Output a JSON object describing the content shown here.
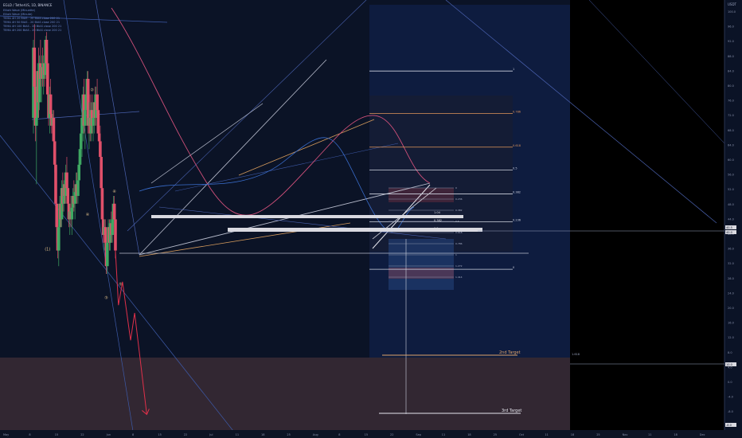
{
  "legend": {
    "title": "EGLD / TetherUS, 1D, BINANCE",
    "lines": [
      "Elliott Wave (Minuette)",
      "Elliott Wave (Minute)",
      "TEMA 4H 20 BIAS - 20 BIAS close 200 21",
      "TEMA 4H 50 BIAS - 20 BIAS close 200 21",
      "TEMA 4H 100 BIAS - 20 BIAS close 200 21",
      "TEMA 4H 200 BIAS - 20 BIAS close 200 21"
    ]
  },
  "currency": "USDT",
  "wave_labels": [
    {
      "text": "(1)",
      "t": 14,
      "p": 38.0
    },
    {
      "text": "②",
      "t": 58,
      "p": 78.8
    },
    {
      "text": "④",
      "t": 53.5,
      "p": 46.9
    },
    {
      "text": "③",
      "t": 72,
      "p": 25.6
    },
    {
      "text": "④",
      "t": 80,
      "p": 52.8
    },
    {
      "text": "⑤",
      "t": 86,
      "p": 29.0
    }
  ],
  "targets": [
    {
      "text": "2nd Target",
      "p": 9.6
    },
    {
      "text": "3rd Target",
      "p": -4.4
    }
  ],
  "fib_levels": [
    {
      "label": "0",
      "p": 33.2
    },
    {
      "label": "0.236",
      "p": 45.4
    },
    {
      "label": "0.382",
      "p": 52.5
    },
    {
      "label": "0.5",
      "p": 58.6
    },
    {
      "label": "0.618",
      "p": 64.5
    },
    {
      "label": "0.786",
      "p": 73.1
    },
    {
      "label": "1",
      "p": 84.0
    }
  ],
  "fib_small": [
    "0",
    "0.236",
    "0.382",
    "0.5",
    "0.618",
    "0.786",
    "1",
    "1.272",
    "1.414"
  ],
  "fib_small_values": [
    "1.04",
    "0.382",
    "0.5"
  ],
  "right_fib": "1.618",
  "price_axis": {
    "labels": [
      "100.0",
      "96.0",
      "92.0",
      "88.0",
      "84.0",
      "80.0",
      "76.0",
      "72.0",
      "68.0",
      "64.0",
      "60.0",
      "56.0",
      "52.0",
      "48.0",
      "44.0",
      "40.0",
      "36.0",
      "32.0",
      "28.0",
      "24.0",
      "20.0",
      "16.0",
      "12.0",
      "8.0",
      "4.0",
      "0.0",
      "-4.0",
      "-8.0"
    ],
    "current_price": "40.5",
    "current_change": "40.0",
    "mid_tag": "10.0",
    "low_tag": "-8.0"
  },
  "time_axis": {
    "labels": [
      "May",
      "8",
      "15",
      "22",
      "Jun",
      "8",
      "15",
      "22",
      "Jul",
      "11",
      "18",
      "25",
      "Aug",
      "8",
      "15",
      "22",
      "Sep",
      "11",
      "18",
      "25",
      "Oct",
      "11",
      "18",
      "25",
      "Nov",
      "11",
      "18",
      "Dec"
    ]
  },
  "chart_data": {
    "type": "candlestick",
    "title": "EGLD / TetherUS, 1D, BINANCE",
    "xlabel": "",
    "ylabel": "USDT",
    "x_unit": "days from 1 May (chart start)",
    "xlim": [
      0,
      180
    ],
    "ylim": [
      -8,
      102
    ],
    "candles": [
      {
        "t": 0,
        "o": 72,
        "h": 92,
        "l": 68,
        "c": 90
      },
      {
        "t": 1,
        "o": 90,
        "h": 96,
        "l": 78,
        "c": 80
      },
      {
        "t": 2,
        "o": 80,
        "h": 84,
        "l": 66,
        "c": 70
      },
      {
        "t": 3,
        "o": 70,
        "h": 78,
        "l": 55,
        "c": 72
      },
      {
        "t": 4,
        "o": 72,
        "h": 86,
        "l": 70,
        "c": 84
      },
      {
        "t": 5,
        "o": 84,
        "h": 90,
        "l": 72,
        "c": 76
      },
      {
        "t": 6,
        "o": 76,
        "h": 88,
        "l": 74,
        "c": 86
      },
      {
        "t": 7,
        "o": 86,
        "h": 92,
        "l": 80,
        "c": 82
      },
      {
        "t": 8,
        "o": 82,
        "h": 88,
        "l": 76,
        "c": 85
      },
      {
        "t": 9,
        "o": 85,
        "h": 90,
        "l": 80,
        "c": 82
      },
      {
        "t": 10,
        "o": 82,
        "h": 88,
        "l": 78,
        "c": 86
      },
      {
        "t": 11,
        "o": 86,
        "h": 90,
        "l": 80,
        "c": 83
      },
      {
        "t": 12,
        "o": 83,
        "h": 93,
        "l": 82,
        "c": 92
      },
      {
        "t": 13,
        "o": 92,
        "h": 94,
        "l": 84,
        "c": 86
      },
      {
        "t": 14,
        "o": 86,
        "h": 90,
        "l": 76,
        "c": 78
      },
      {
        "t": 15,
        "o": 78,
        "h": 84,
        "l": 70,
        "c": 72
      },
      {
        "t": 16,
        "o": 72,
        "h": 80,
        "l": 68,
        "c": 78
      },
      {
        "t": 17,
        "o": 78,
        "h": 82,
        "l": 70,
        "c": 73
      },
      {
        "t": 18,
        "o": 73,
        "h": 78,
        "l": 68,
        "c": 70
      },
      {
        "t": 19,
        "o": 70,
        "h": 74,
        "l": 66,
        "c": 72
      },
      {
        "t": 20,
        "o": 72,
        "h": 74,
        "l": 62,
        "c": 66
      },
      {
        "t": 21,
        "o": 66,
        "h": 70,
        "l": 58,
        "c": 60
      },
      {
        "t": 22,
        "o": 60,
        "h": 62,
        "l": 48,
        "c": 50
      },
      {
        "t": 23,
        "o": 50,
        "h": 56,
        "l": 40,
        "c": 44
      },
      {
        "t": 24,
        "o": 44,
        "h": 48,
        "l": 36,
        "c": 38
      },
      {
        "t": 25,
        "o": 38,
        "h": 46,
        "l": 34,
        "c": 44
      },
      {
        "t": 26,
        "o": 44,
        "h": 52,
        "l": 42,
        "c": 50
      },
      {
        "t": 27,
        "o": 50,
        "h": 54,
        "l": 44,
        "c": 46
      },
      {
        "t": 28,
        "o": 46,
        "h": 56,
        "l": 44,
        "c": 54
      },
      {
        "t": 29,
        "o": 54,
        "h": 58,
        "l": 48,
        "c": 50
      },
      {
        "t": 30,
        "o": 50,
        "h": 56,
        "l": 48,
        "c": 55
      },
      {
        "t": 31,
        "o": 55,
        "h": 58,
        "l": 50,
        "c": 52
      },
      {
        "t": 32,
        "o": 52,
        "h": 60,
        "l": 50,
        "c": 58
      },
      {
        "t": 33,
        "o": 58,
        "h": 62,
        "l": 52,
        "c": 54
      },
      {
        "t": 34,
        "o": 54,
        "h": 58,
        "l": 48,
        "c": 50
      },
      {
        "t": 35,
        "o": 50,
        "h": 54,
        "l": 44,
        "c": 46
      },
      {
        "t": 36,
        "o": 46,
        "h": 50,
        "l": 42,
        "c": 48
      },
      {
        "t": 37,
        "o": 48,
        "h": 52,
        "l": 44,
        "c": 46
      },
      {
        "t": 38,
        "o": 46,
        "h": 50,
        "l": 42,
        "c": 49
      },
      {
        "t": 39,
        "o": 49,
        "h": 54,
        "l": 46,
        "c": 52
      },
      {
        "t": 40,
        "o": 52,
        "h": 56,
        "l": 48,
        "c": 50
      },
      {
        "t": 41,
        "o": 50,
        "h": 54,
        "l": 46,
        "c": 53
      },
      {
        "t": 42,
        "o": 53,
        "h": 58,
        "l": 50,
        "c": 55
      },
      {
        "t": 43,
        "o": 55,
        "h": 58,
        "l": 50,
        "c": 52
      },
      {
        "t": 44,
        "o": 52,
        "h": 58,
        "l": 50,
        "c": 56
      },
      {
        "t": 45,
        "o": 56,
        "h": 62,
        "l": 54,
        "c": 60
      },
      {
        "t": 46,
        "o": 60,
        "h": 66,
        "l": 56,
        "c": 64
      },
      {
        "t": 47,
        "o": 64,
        "h": 70,
        "l": 60,
        "c": 68
      },
      {
        "t": 48,
        "o": 68,
        "h": 74,
        "l": 62,
        "c": 72
      },
      {
        "t": 49,
        "o": 72,
        "h": 80,
        "l": 66,
        "c": 78
      },
      {
        "t": 50,
        "o": 78,
        "h": 82,
        "l": 68,
        "c": 70
      },
      {
        "t": 51,
        "o": 70,
        "h": 76,
        "l": 64,
        "c": 74
      },
      {
        "t": 52,
        "o": 74,
        "h": 80,
        "l": 70,
        "c": 78
      },
      {
        "t": 53,
        "o": 78,
        "h": 84,
        "l": 72,
        "c": 82
      },
      {
        "t": 54,
        "o": 82,
        "h": 84,
        "l": 68,
        "c": 70
      },
      {
        "t": 55,
        "o": 70,
        "h": 76,
        "l": 64,
        "c": 72
      },
      {
        "t": 56,
        "o": 72,
        "h": 78,
        "l": 66,
        "c": 68
      },
      {
        "t": 57,
        "o": 68,
        "h": 76,
        "l": 66,
        "c": 74
      },
      {
        "t": 58,
        "o": 74,
        "h": 78,
        "l": 68,
        "c": 70
      },
      {
        "t": 59,
        "o": 70,
        "h": 76,
        "l": 66,
        "c": 72
      },
      {
        "t": 60,
        "o": 72,
        "h": 78,
        "l": 68,
        "c": 76
      },
      {
        "t": 61,
        "o": 76,
        "h": 80,
        "l": 70,
        "c": 72
      },
      {
        "t": 62,
        "o": 72,
        "h": 80,
        "l": 70,
        "c": 78
      },
      {
        "t": 63,
        "o": 78,
        "h": 82,
        "l": 72,
        "c": 74
      },
      {
        "t": 64,
        "o": 74,
        "h": 78,
        "l": 66,
        "c": 68
      },
      {
        "t": 65,
        "o": 68,
        "h": 72,
        "l": 62,
        "c": 66
      },
      {
        "t": 66,
        "o": 66,
        "h": 70,
        "l": 60,
        "c": 62
      },
      {
        "t": 67,
        "o": 62,
        "h": 64,
        "l": 52,
        "c": 54
      },
      {
        "t": 68,
        "o": 54,
        "h": 58,
        "l": 44,
        "c": 46
      },
      {
        "t": 69,
        "o": 46,
        "h": 48,
        "l": 40,
        "c": 42
      },
      {
        "t": 70,
        "o": 42,
        "h": 46,
        "l": 38,
        "c": 44
      },
      {
        "t": 71,
        "o": 44,
        "h": 46,
        "l": 38,
        "c": 40
      },
      {
        "t": 72,
        "o": 40,
        "h": 42,
        "l": 32,
        "c": 34
      },
      {
        "t": 73,
        "o": 34,
        "h": 42,
        "l": 32,
        "c": 40
      },
      {
        "t": 74,
        "o": 40,
        "h": 46,
        "l": 38,
        "c": 44
      },
      {
        "t": 75,
        "o": 44,
        "h": 46,
        "l": 38,
        "c": 40
      },
      {
        "t": 76,
        "o": 40,
        "h": 46,
        "l": 38,
        "c": 45
      },
      {
        "t": 77,
        "o": 45,
        "h": 48,
        "l": 40,
        "c": 42
      },
      {
        "t": 78,
        "o": 42,
        "h": 48,
        "l": 40,
        "c": 46
      },
      {
        "t": 79,
        "o": 46,
        "h": 52,
        "l": 44,
        "c": 50
      },
      {
        "t": 80,
        "o": 50,
        "h": 52,
        "l": 44,
        "c": 46
      },
      {
        "t": 81,
        "o": 46,
        "h": 48,
        "l": 36,
        "c": 38
      }
    ],
    "projection": [
      {
        "t": 81,
        "p": 38
      },
      {
        "t": 84,
        "p": 24
      },
      {
        "t": 88,
        "p": 30
      },
      {
        "t": 96,
        "p": 15
      },
      {
        "t": 100,
        "p": 22
      },
      {
        "t": 112,
        "p": -4
      }
    ]
  }
}
